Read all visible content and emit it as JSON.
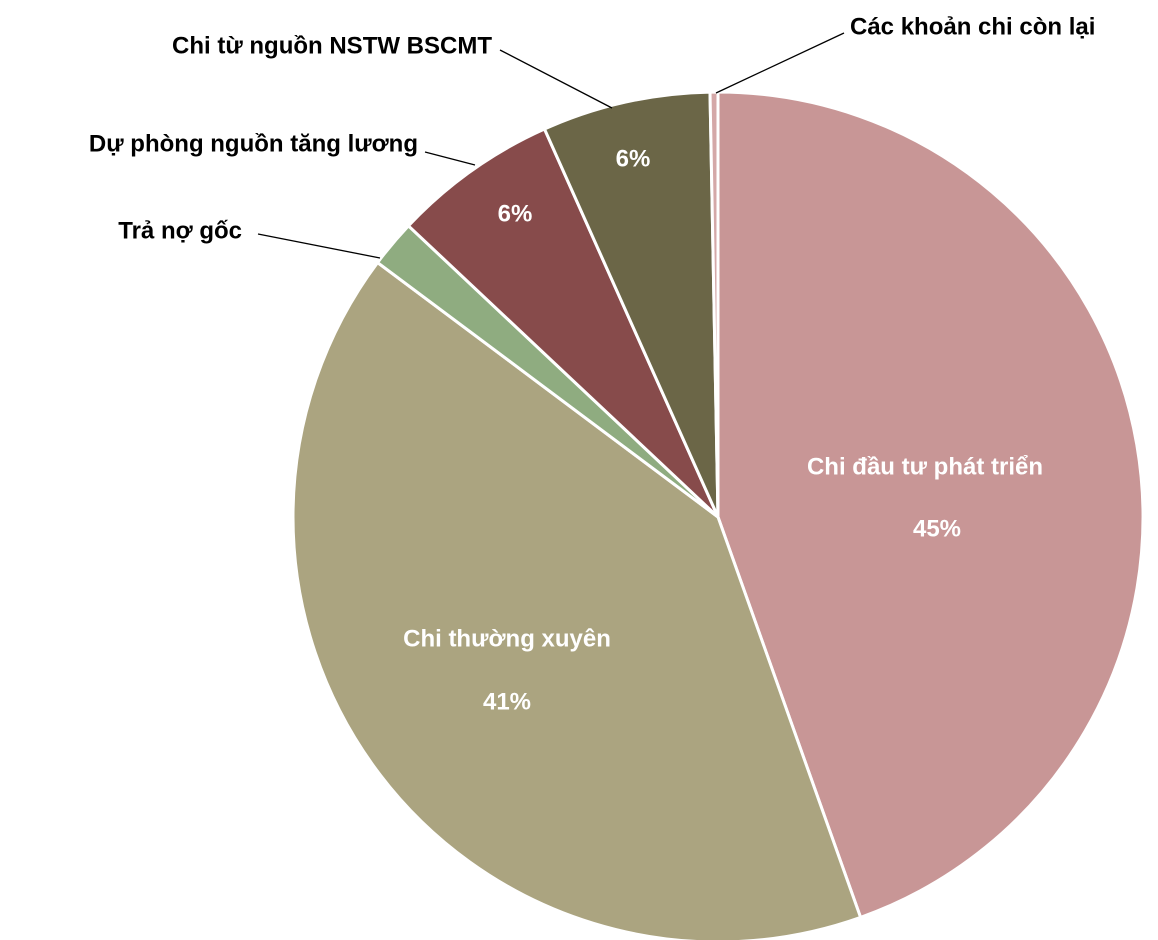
{
  "chart_data": {
    "type": "pie",
    "categories": [
      "Chi đầu tư phát triển",
      "Chi thường xuyên",
      "Trả nợ gốc",
      "Dự phòng nguồn tăng lương",
      "Chi từ nguồn NSTW BSCMT",
      "Các khoản chi còn lại"
    ],
    "values": [
      44.6,
      40.7,
      1.8,
      6.3,
      6.4,
      0.3
    ],
    "value_labels": [
      "45%",
      "41%",
      null,
      "6%",
      "6%",
      null
    ],
    "colors": [
      "#c89696",
      "#aba480",
      "#8fac80",
      "#874b4b",
      "#6b6647",
      "#d4a8a8"
    ]
  }
}
